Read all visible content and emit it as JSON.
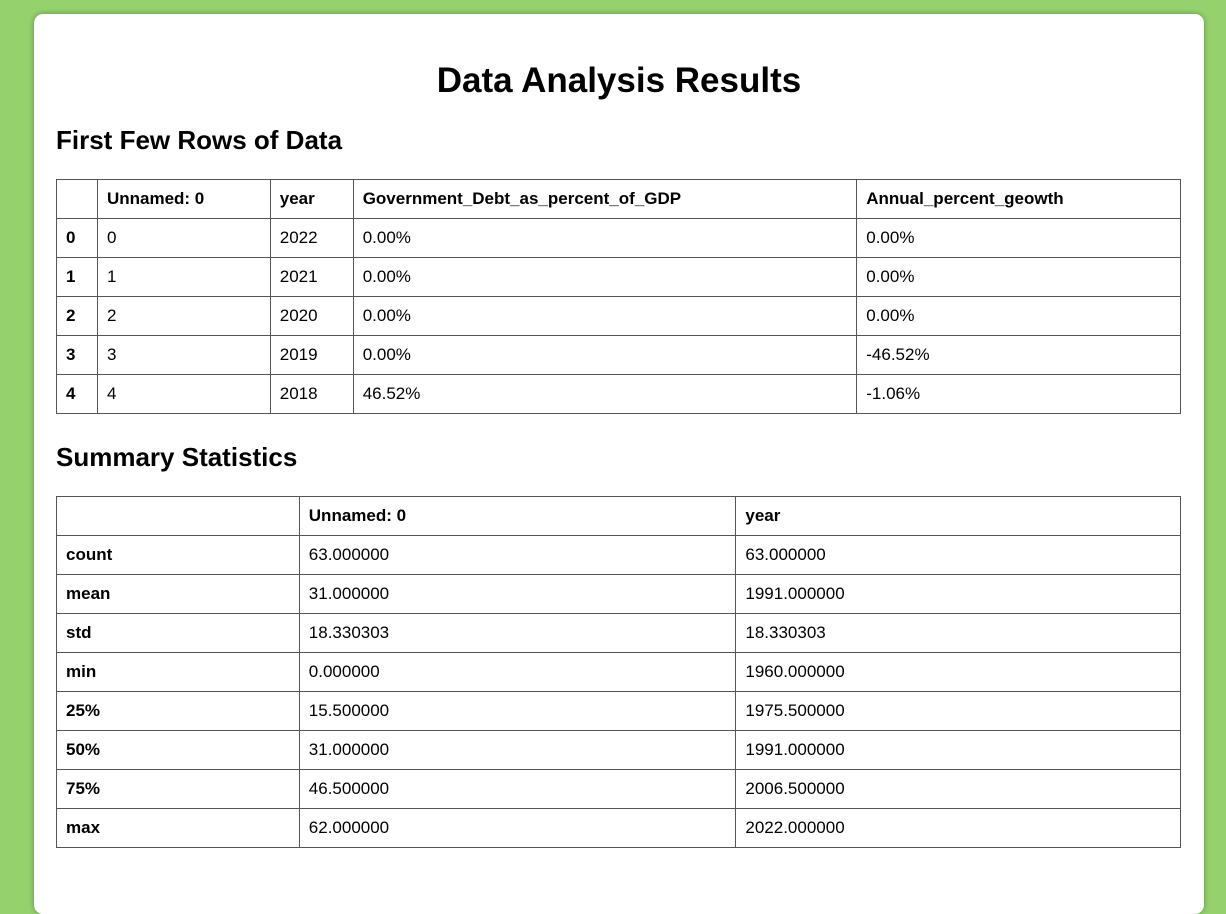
{
  "page_title": "Data Analysis Results",
  "first_rows": {
    "heading": "First Few Rows of Data",
    "columns": [
      "",
      "Unnamed: 0",
      "year",
      "Government_Debt_as_percent_of_GDP",
      "Annual_percent_geowth"
    ],
    "rows": [
      [
        "0",
        "0",
        "2022",
        "0.00%",
        "0.00%"
      ],
      [
        "1",
        "1",
        "2021",
        "0.00%",
        "0.00%"
      ],
      [
        "2",
        "2",
        "2020",
        "0.00%",
        "0.00%"
      ],
      [
        "3",
        "3",
        "2019",
        "0.00%",
        "-46.52%"
      ],
      [
        "4",
        "4",
        "2018",
        "46.52%",
        "-1.06%"
      ]
    ]
  },
  "summary": {
    "heading": "Summary Statistics",
    "columns": [
      "",
      "Unnamed: 0",
      "year"
    ],
    "rows": [
      [
        "count",
        "63.000000",
        "63.000000"
      ],
      [
        "mean",
        "31.000000",
        "1991.000000"
      ],
      [
        "std",
        "18.330303",
        "18.330303"
      ],
      [
        "min",
        "0.000000",
        "1960.000000"
      ],
      [
        "25%",
        "15.500000",
        "1975.500000"
      ],
      [
        "50%",
        "31.000000",
        "1991.000000"
      ],
      [
        "75%",
        "46.500000",
        "2006.500000"
      ],
      [
        "max",
        "62.000000",
        "2022.000000"
      ]
    ]
  },
  "colors": {
    "background": "#95d26e",
    "card": "#ffffff",
    "border": "#555555"
  }
}
